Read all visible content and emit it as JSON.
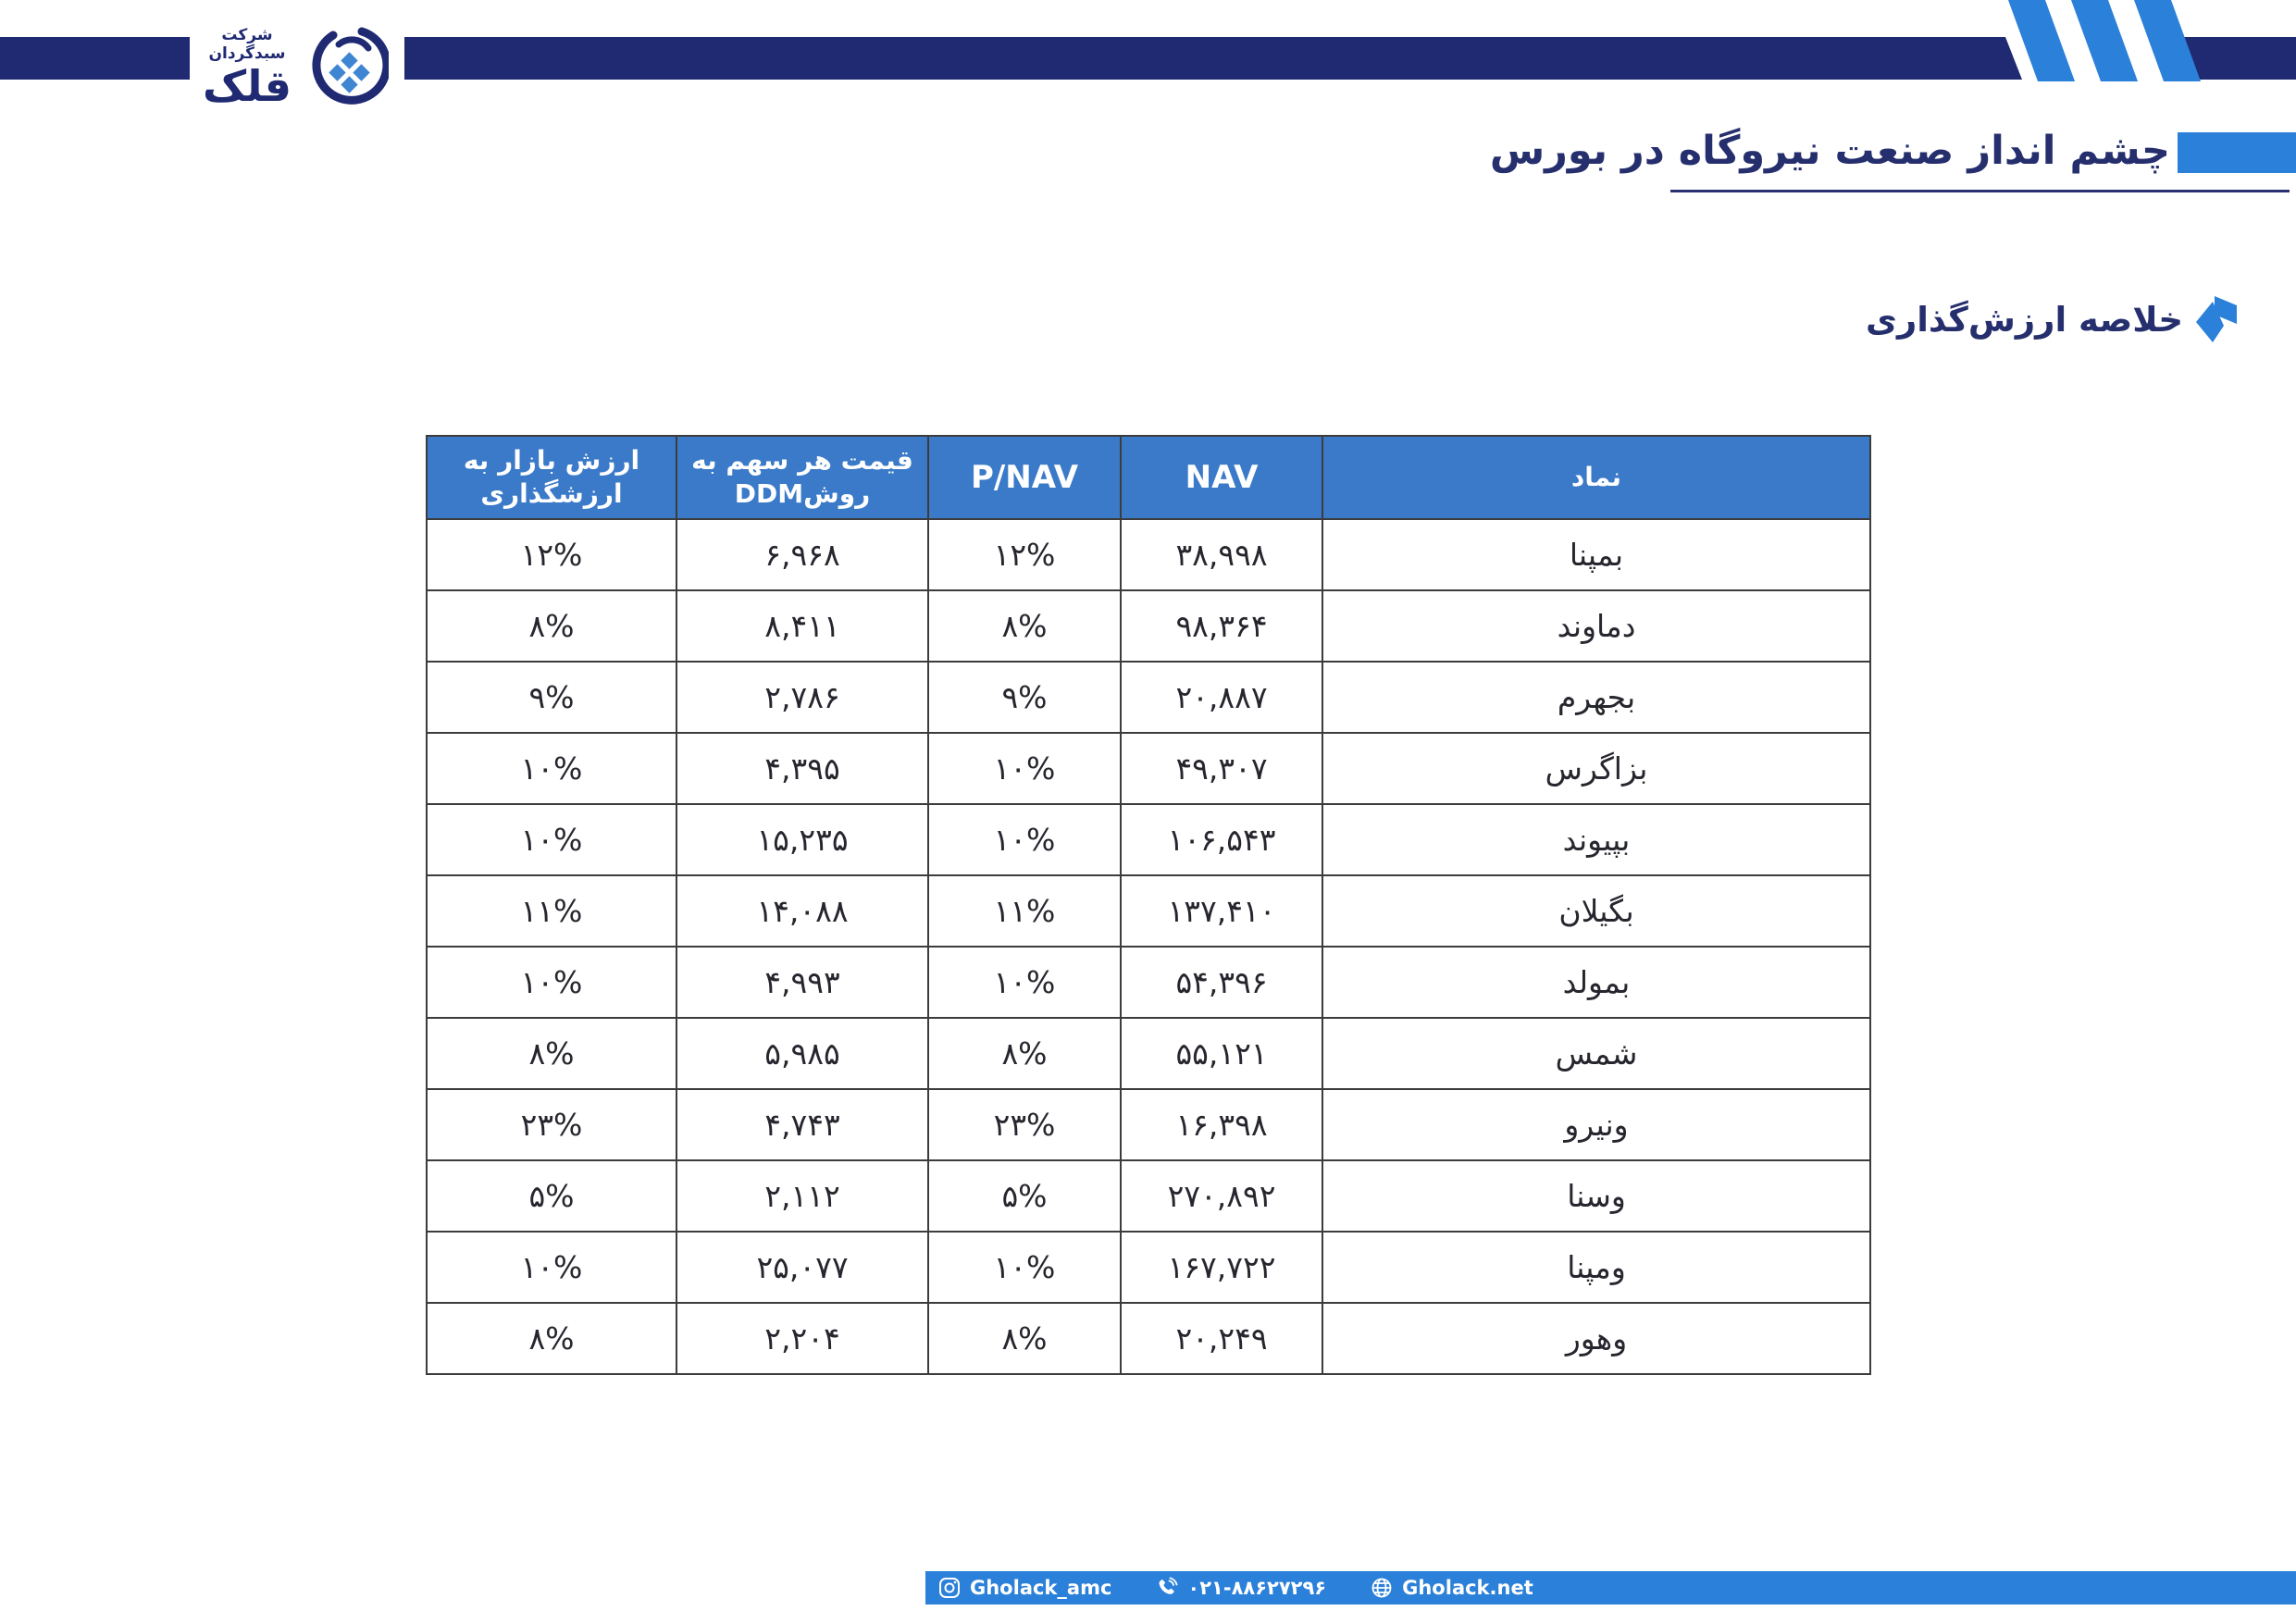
{
  "brand": {
    "company_line": "شرکت سبدگردان",
    "brand_name": "قلک"
  },
  "header": {
    "title": "چشم انداز صنعت نیروگاه در بورس"
  },
  "section": {
    "subtitle": "خلاصه ارزش‌گذاری"
  },
  "table": {
    "headers": {
      "symbol": "نماد",
      "nav": "NAV",
      "pnav": "P/NAV",
      "ddm_line1": "قیمت هر سهم به",
      "ddm_line2": "روشDDM",
      "mv_line1": "ارزش بازار به",
      "mv_line2": "ارزشگذاری"
    },
    "rows": [
      {
        "symbol": "بمپنا",
        "nav": "۳۸,۹۹۸",
        "pnav": "۱۲%",
        "ddm": "۶,۹۶۸",
        "mv": "۱۲%"
      },
      {
        "symbol": "دماوند",
        "nav": "۹۸,۳۶۴",
        "pnav": "۸%",
        "ddm": "۸,۴۱۱",
        "mv": "۸%"
      },
      {
        "symbol": "بجهرم",
        "nav": "۲۰,۸۸۷",
        "pnav": "۹%",
        "ddm": "۲,۷۸۶",
        "mv": "۹%"
      },
      {
        "symbol": "بزاگرس",
        "nav": "۴۹,۳۰۷",
        "pnav": "۱۰%",
        "ddm": "۴,۳۹۵",
        "mv": "۱۰%"
      },
      {
        "symbol": "بپیوند",
        "nav": "۱۰۶,۵۴۳",
        "pnav": "۱۰%",
        "ddm": "۱۵,۲۳۵",
        "mv": "۱۰%"
      },
      {
        "symbol": "بگیلان",
        "nav": "۱۳۷,۴۱۰",
        "pnav": "۱۱%",
        "ddm": "۱۴,۰۸۸",
        "mv": "۱۱%"
      },
      {
        "symbol": "بمولد",
        "nav": "۵۴,۳۹۶",
        "pnav": "۱۰%",
        "ddm": "۴,۹۹۳",
        "mv": "۱۰%"
      },
      {
        "symbol": "شمس",
        "nav": "۵۵,۱۲۱",
        "pnav": "۸%",
        "ddm": "۵,۹۸۵",
        "mv": "۸%"
      },
      {
        "symbol": "ونیرو",
        "nav": "۱۶,۳۹۸",
        "pnav": "۲۳%",
        "ddm": "۴,۷۴۳",
        "mv": "۲۳%"
      },
      {
        "symbol": "وسنا",
        "nav": "۲۷۰,۸۹۲",
        "pnav": "۵%",
        "ddm": "۲,۱۱۲",
        "mv": "۵%"
      },
      {
        "symbol": "ومپنا",
        "nav": "۱۶۷,۷۲۲",
        "pnav": "۱۰%",
        "ddm": "۲۵,۰۷۷",
        "mv": "۱۰%"
      },
      {
        "symbol": "وهور",
        "nav": "۲۰,۲۴۹",
        "pnav": "۸%",
        "ddm": "۲,۲۰۴",
        "mv": "۸%"
      }
    ]
  },
  "footer": {
    "instagram": "Gholack_amc",
    "phone": "۰۲۱-۸۸۶۲۷۲۹۶",
    "website": "Gholack.net"
  },
  "colors": {
    "navy": "#1f2a72",
    "title_text": "#262f6d",
    "accent_blue": "#2b80d9",
    "table_header_blue": "#3a7ac8",
    "table_border": "#3c3c3c",
    "cell_text": "#26262e"
  }
}
